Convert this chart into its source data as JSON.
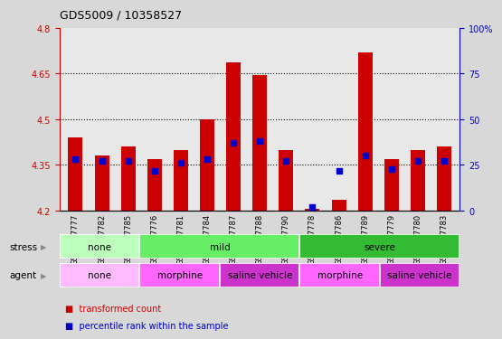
{
  "title": "GDS5009 / 10358527",
  "samples": [
    "GSM1217777",
    "GSM1217782",
    "GSM1217785",
    "GSM1217776",
    "GSM1217781",
    "GSM1217784",
    "GSM1217787",
    "GSM1217788",
    "GSM1217790",
    "GSM1217778",
    "GSM1217786",
    "GSM1217789",
    "GSM1217779",
    "GSM1217780",
    "GSM1217783"
  ],
  "transformed_counts": [
    4.44,
    4.38,
    4.41,
    4.37,
    4.4,
    4.5,
    4.685,
    4.645,
    4.4,
    4.205,
    4.235,
    4.72,
    4.37,
    4.4,
    4.41
  ],
  "percentile_ranks": [
    28,
    27,
    27,
    22,
    26,
    28,
    37,
    38,
    27,
    2,
    22,
    30,
    23,
    27,
    27
  ],
  "ylim_left": [
    4.2,
    4.8
  ],
  "ylim_right": [
    0,
    100
  ],
  "yticks_left": [
    4.2,
    4.35,
    4.5,
    4.65,
    4.8
  ],
  "yticks_right": [
    0,
    25,
    50,
    75,
    100
  ],
  "ytick_labels_left": [
    "4.2",
    "4.35",
    "4.5",
    "4.65",
    "4.8"
  ],
  "ytick_labels_right": [
    "0",
    "25",
    "50",
    "75",
    "100%"
  ],
  "hlines": [
    4.35,
    4.5,
    4.65
  ],
  "bar_bottom": 4.2,
  "bar_color": "#cc0000",
  "dot_color": "#0000cc",
  "bg_color": "#d8d8d8",
  "plot_bg": "#e8e8e8",
  "stress_groups": [
    {
      "label": "none",
      "start": 0,
      "end": 3,
      "color": "#bbffbb"
    },
    {
      "label": "mild",
      "start": 3,
      "end": 9,
      "color": "#66ee66"
    },
    {
      "label": "severe",
      "start": 9,
      "end": 15,
      "color": "#33bb33"
    }
  ],
  "agent_groups": [
    {
      "label": "none",
      "start": 0,
      "end": 3,
      "color": "#ffbbff"
    },
    {
      "label": "morphine",
      "start": 3,
      "end": 6,
      "color": "#ff66ff"
    },
    {
      "label": "saline vehicle",
      "start": 6,
      "end": 9,
      "color": "#cc33cc"
    },
    {
      "label": "morphine",
      "start": 9,
      "end": 12,
      "color": "#ff66ff"
    },
    {
      "label": "saline vehicle",
      "start": 12,
      "end": 15,
      "color": "#cc33cc"
    }
  ],
  "legend_items": [
    {
      "label": "transformed count",
      "color": "#cc0000"
    },
    {
      "label": "percentile rank within the sample",
      "color": "#0000cc"
    }
  ]
}
